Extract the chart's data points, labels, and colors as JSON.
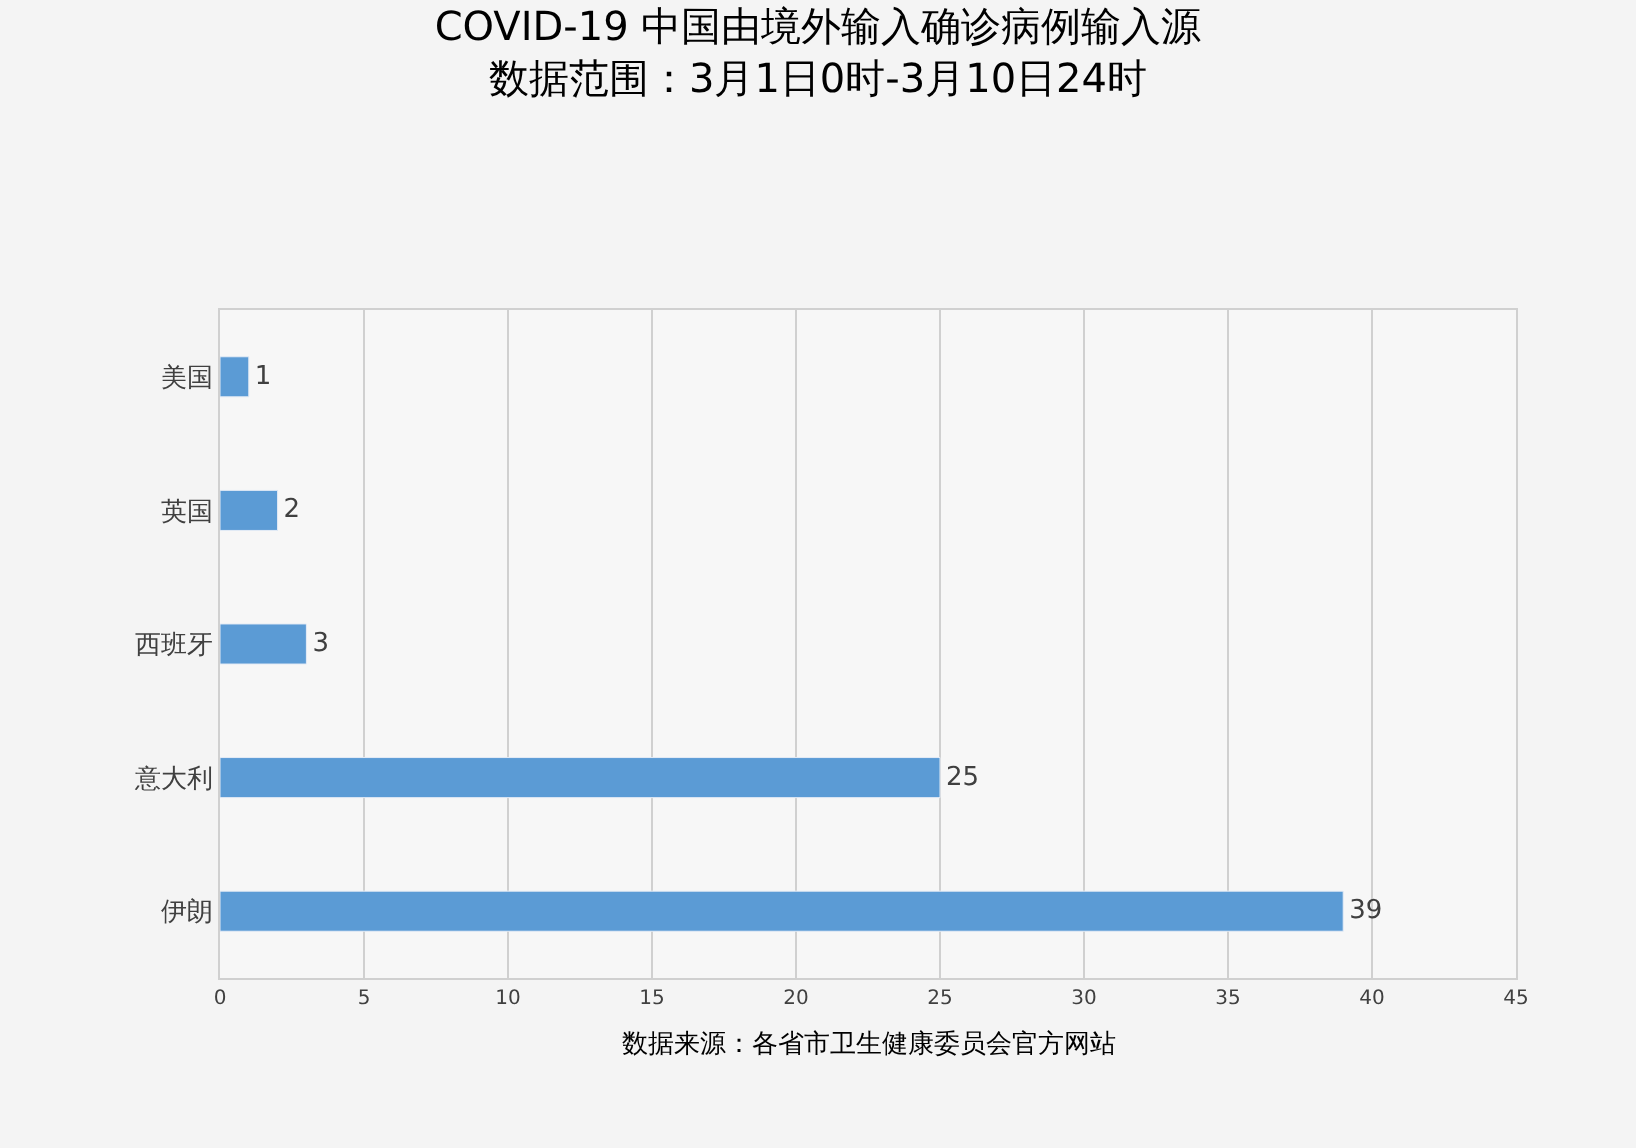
{
  "chart_data": {
    "type": "bar",
    "orientation": "horizontal",
    "title": "COVID-19 中国由境外输入确诊病例输入源",
    "subtitle": "数据范围：3月1日0时-3月10日24时",
    "categories": [
      "美国",
      "英国",
      "西班牙",
      "意大利",
      "伊朗"
    ],
    "values": [
      1,
      2,
      3,
      25,
      39
    ],
    "color": "#5b9bd5",
    "xlim": [
      0,
      45
    ],
    "xticks": [
      0,
      5,
      10,
      15,
      20,
      25,
      30,
      35,
      40,
      45
    ],
    "grid": "x",
    "data_labels": true,
    "annotations": [
      "数据来源：各省市卫生健康委员会官方网站"
    ]
  }
}
